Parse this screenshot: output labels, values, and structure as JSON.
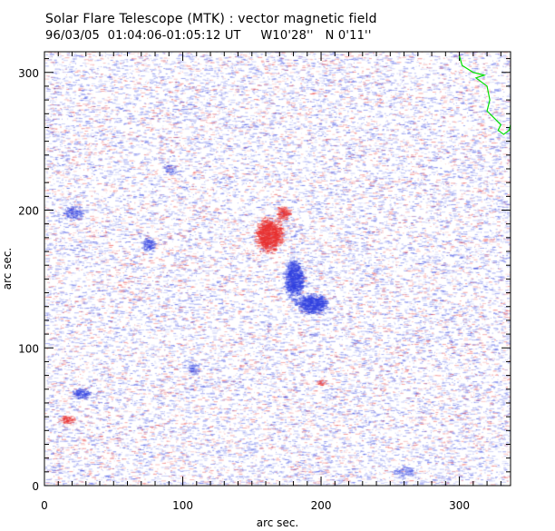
{
  "chart_data": {
    "type": "heatmap",
    "title": "Solar Flare Telescope (MTK) : vector magnetic field",
    "subtitle": "96/03/05  01:04:06-01:05:12 UT     W10'28''   N 0'11''",
    "xlabel": "arc sec.",
    "ylabel": "arc sec.",
    "xlim": [
      0,
      337
    ],
    "ylim": [
      0,
      315
    ],
    "xticks": [
      0,
      100,
      200,
      300
    ],
    "yticks": [
      0,
      100,
      200,
      300
    ],
    "colors": {
      "positive": "#e83030",
      "negative": "#3040e0",
      "contour": "#00e000"
    },
    "features": [
      {
        "polarity": "positive",
        "x": 162,
        "y": 182,
        "rx": 10,
        "ry": 12,
        "strength": 1.0
      },
      {
        "polarity": "positive",
        "x": 172,
        "y": 198,
        "rx": 5,
        "ry": 5,
        "strength": 0.7
      },
      {
        "polarity": "negative",
        "x": 180,
        "y": 150,
        "rx": 7,
        "ry": 14,
        "strength": 0.9
      },
      {
        "polarity": "negative",
        "x": 193,
        "y": 132,
        "rx": 11,
        "ry": 7,
        "strength": 0.9
      },
      {
        "polarity": "negative",
        "x": 75,
        "y": 175,
        "rx": 5,
        "ry": 5,
        "strength": 0.6
      },
      {
        "polarity": "negative",
        "x": 20,
        "y": 198,
        "rx": 8,
        "ry": 5,
        "strength": 0.5
      },
      {
        "polarity": "negative",
        "x": 26,
        "y": 67,
        "rx": 6,
        "ry": 4,
        "strength": 0.7
      },
      {
        "polarity": "positive",
        "x": 16,
        "y": 48,
        "rx": 6,
        "ry": 3,
        "strength": 0.7
      },
      {
        "polarity": "negative",
        "x": 107,
        "y": 85,
        "rx": 4,
        "ry": 4,
        "strength": 0.4
      },
      {
        "polarity": "negative",
        "x": 90,
        "y": 230,
        "rx": 5,
        "ry": 4,
        "strength": 0.35
      },
      {
        "polarity": "negative",
        "x": 260,
        "y": 10,
        "rx": 8,
        "ry": 4,
        "strength": 0.35
      },
      {
        "polarity": "positive",
        "x": 200,
        "y": 75,
        "rx": 4,
        "ry": 3,
        "strength": 0.4
      }
    ],
    "contour": [
      [
        300,
        312
      ],
      [
        302,
        305
      ],
      [
        310,
        300
      ],
      [
        318,
        298
      ],
      [
        312,
        296
      ],
      [
        320,
        290
      ],
      [
        322,
        280
      ],
      [
        320,
        272
      ],
      [
        326,
        266
      ],
      [
        330,
        262
      ],
      [
        328,
        258
      ],
      [
        332,
        255
      ],
      [
        336,
        258
      ],
      [
        337,
        262
      ]
    ]
  }
}
